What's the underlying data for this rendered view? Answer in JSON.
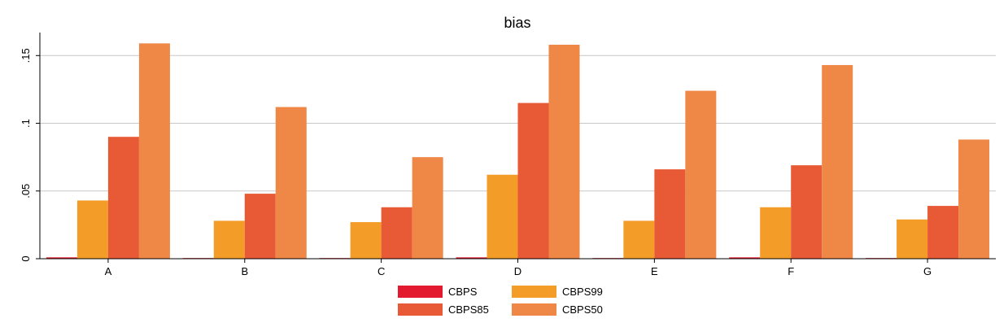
{
  "chart_data": {
    "type": "bar",
    "title": "bias",
    "xlabel": "",
    "ylabel": "",
    "categories": [
      "A",
      "B",
      "C",
      "D",
      "E",
      "F",
      "G"
    ],
    "series": [
      {
        "name": "CBPS",
        "color": "#e31a2f",
        "values": [
          0.001,
          0.0005,
          0.0005,
          0.001,
          0.0005,
          0.001,
          0.0005
        ]
      },
      {
        "name": "CBPS99",
        "color": "#f39c28",
        "values": [
          0.043,
          0.028,
          0.027,
          0.062,
          0.028,
          0.038,
          0.029
        ]
      },
      {
        "name": "CBPS85",
        "color": "#e85a35",
        "values": [
          0.09,
          0.048,
          0.038,
          0.115,
          0.066,
          0.069,
          0.039
        ]
      },
      {
        "name": "CBPS50",
        "color": "#ef8747",
        "values": [
          0.159,
          0.112,
          0.075,
          0.158,
          0.124,
          0.143,
          0.088
        ]
      }
    ],
    "ylim": [
      0,
      0.167
    ],
    "yticks": [
      0,
      0.05,
      0.1,
      0.15
    ],
    "ytick_labels": [
      "0",
      ".05",
      ".1",
      ".15"
    ],
    "grid": true,
    "legend_position": "bottom"
  }
}
